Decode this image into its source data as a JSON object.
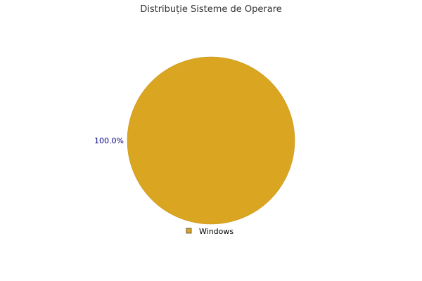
{
  "chart_data": {
    "type": "pie",
    "title": "Distribuție Sisteme de Operare",
    "slices": [
      {
        "label": "Windows",
        "value": 100.0,
        "percent_label": "100.0%",
        "color": "#DAA520"
      }
    ],
    "label_color": "#000080",
    "legend_placement": "bottom"
  }
}
